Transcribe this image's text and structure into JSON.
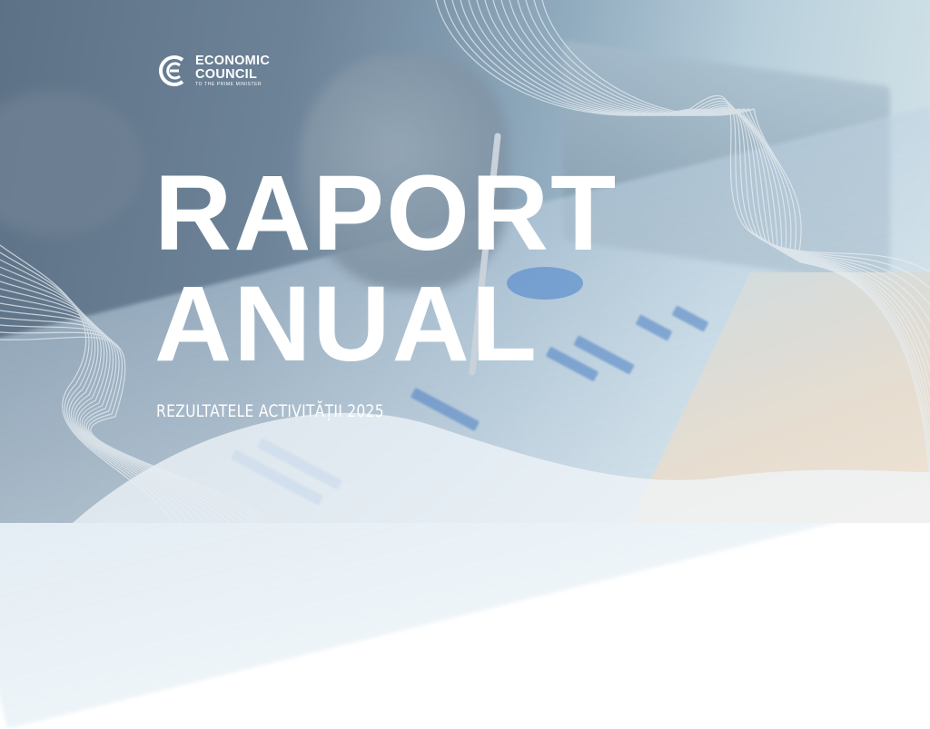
{
  "logo": {
    "line1": "ECONOMIC",
    "line2": "COUNCIL",
    "line3": "TO THE PRIME MINISTER",
    "text": "EC"
  },
  "title": {
    "line1": "RAPORT",
    "line2": "ANUAL"
  },
  "subtitle": "REZULTATELE ACTIVITĂȚII 2025",
  "colors": {
    "accent": "#ffffff",
    "overlay": "#6d8398",
    "bars": "#4b7fc4",
    "lines": "#e8eef2"
  }
}
